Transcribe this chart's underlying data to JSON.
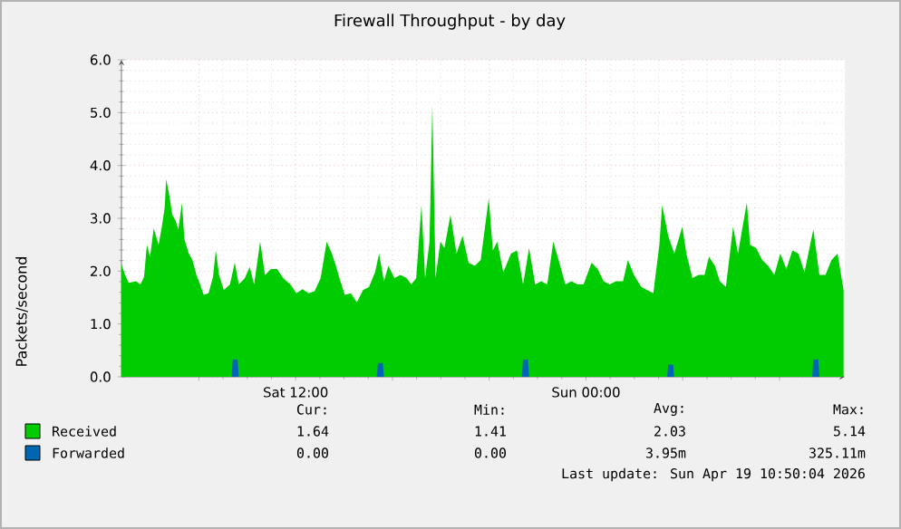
{
  "chart_data": {
    "type": "area",
    "title": "Firewall Throughput - by day",
    "ylabel": "Packets/second",
    "xlim": [
      "2026-04-18T04:48",
      "2026-04-19T10:42"
    ],
    "ylim": [
      0,
      6
    ],
    "xticks": [
      {
        "value": "2026-04-18T08:00",
        "label": null
      },
      {
        "value": "2026-04-18T12:00",
        "label": "Sat 12:00"
      },
      {
        "value": "2026-04-18T16:00",
        "label": null
      },
      {
        "value": "2026-04-18T20:00",
        "label": null
      },
      {
        "value": "2026-04-19T00:00",
        "label": "Sun 00:00"
      },
      {
        "value": "2026-04-19T04:00",
        "label": null
      },
      {
        "value": "2026-04-19T08:00",
        "label": null
      }
    ],
    "yticks": [
      {
        "value": 0,
        "label": "0.0"
      },
      {
        "value": 1,
        "label": "1.0"
      },
      {
        "value": 2,
        "label": "2.0"
      },
      {
        "value": 3,
        "label": "3.0"
      },
      {
        "value": 4,
        "label": "4.0"
      },
      {
        "value": 5,
        "label": "5.0"
      },
      {
        "value": 6,
        "label": "6.0"
      }
    ],
    "grid": true,
    "legend": "bottom left",
    "series": [
      {
        "name": "Received",
        "color": "#00cc00",
        "x": [
          "2026-04-18T04:48",
          "2026-04-18T04:57",
          "2026-04-18T05:06",
          "2026-04-18T05:24",
          "2026-04-18T05:35",
          "2026-04-18T05:44",
          "2026-04-18T05:51",
          "2026-04-18T05:59",
          "2026-04-18T06:08",
          "2026-04-18T06:20",
          "2026-04-18T06:27",
          "2026-04-18T06:35",
          "2026-04-18T06:39",
          "2026-04-18T06:47",
          "2026-04-18T06:54",
          "2026-04-18T07:02",
          "2026-04-18T07:09",
          "2026-04-18T07:18",
          "2026-04-18T07:24",
          "2026-04-18T07:35",
          "2026-04-18T07:44",
          "2026-04-18T07:54",
          "2026-04-18T08:03",
          "2026-04-18T08:12",
          "2026-04-18T08:24",
          "2026-04-18T08:35",
          "2026-04-18T08:42",
          "2026-04-18T08:50",
          "2026-04-18T09:02",
          "2026-04-18T09:17",
          "2026-04-18T09:29",
          "2026-04-18T09:39",
          "2026-04-18T09:54",
          "2026-04-18T10:06",
          "2026-04-18T10:17",
          "2026-04-18T10:32",
          "2026-04-18T10:44",
          "2026-04-18T10:59",
          "2026-04-18T11:14",
          "2026-04-18T11:29",
          "2026-04-18T11:47",
          "2026-04-18T12:02",
          "2026-04-18T12:17",
          "2026-04-18T12:32",
          "2026-04-18T12:47",
          "2026-04-18T13:02",
          "2026-04-18T13:17",
          "2026-04-18T13:29",
          "2026-04-18T13:39",
          "2026-04-18T13:51",
          "2026-04-18T14:02",
          "2026-04-18T14:17",
          "2026-04-18T14:32",
          "2026-04-18T14:47",
          "2026-04-18T15:02",
          "2026-04-18T15:17",
          "2026-04-18T15:27",
          "2026-04-18T15:39",
          "2026-04-18T15:50",
          "2026-04-18T16:05",
          "2026-04-18T16:20",
          "2026-04-18T16:35",
          "2026-04-18T16:47",
          "2026-04-18T16:59",
          "2026-04-18T17:12",
          "2026-04-18T17:21",
          "2026-04-18T17:32",
          "2026-04-18T17:39",
          "2026-04-18T17:47",
          "2026-04-18T17:59",
          "2026-04-18T18:09",
          "2026-04-18T18:24",
          "2026-04-18T18:39",
          "2026-04-18T18:54",
          "2026-04-18T19:09",
          "2026-04-18T19:24",
          "2026-04-18T19:39",
          "2026-04-18T19:59",
          "2026-04-18T20:09",
          "2026-04-18T20:20",
          "2026-04-18T20:35",
          "2026-04-18T20:54",
          "2026-04-18T21:09",
          "2026-04-18T21:24",
          "2026-04-18T21:39",
          "2026-04-18T21:54",
          "2026-04-18T22:09",
          "2026-04-18T22:24",
          "2026-04-18T22:39",
          "2026-04-18T22:54",
          "2026-04-18T23:09",
          "2026-04-18T23:24",
          "2026-04-18T23:39",
          "2026-04-18T23:54",
          "2026-04-19T00:14",
          "2026-04-19T00:29",
          "2026-04-19T00:44",
          "2026-04-19T00:59",
          "2026-04-19T01:14",
          "2026-04-19T01:32",
          "2026-04-19T01:44",
          "2026-04-19T01:59",
          "2026-04-19T02:17",
          "2026-04-19T02:32",
          "2026-04-19T02:47",
          "2026-04-19T03:02",
          "2026-04-19T03:09",
          "2026-04-19T03:24",
          "2026-04-19T03:39",
          "2026-04-19T03:59",
          "2026-04-19T04:09",
          "2026-04-19T04:24",
          "2026-04-19T04:39",
          "2026-04-19T04:54",
          "2026-04-19T05:05",
          "2026-04-19T05:20",
          "2026-04-19T05:32",
          "2026-04-19T05:47",
          "2026-04-19T06:05",
          "2026-04-19T06:17",
          "2026-04-19T06:39",
          "2026-04-19T06:47",
          "2026-04-19T07:02",
          "2026-04-19T07:17",
          "2026-04-19T07:32",
          "2026-04-19T07:47",
          "2026-04-19T08:02",
          "2026-04-19T08:17",
          "2026-04-19T08:32",
          "2026-04-19T08:47",
          "2026-04-19T09:02",
          "2026-04-19T09:24",
          "2026-04-19T09:39",
          "2026-04-19T09:54",
          "2026-04-19T10:09",
          "2026-04-19T10:24",
          "2026-04-19T10:39"
        ],
        "values": [
          2.12,
          1.93,
          1.78,
          1.81,
          1.75,
          1.89,
          2.5,
          2.27,
          2.81,
          2.5,
          2.79,
          3.19,
          3.74,
          3.42,
          3.07,
          2.96,
          2.79,
          3.29,
          2.61,
          2.33,
          2.21,
          1.93,
          1.75,
          1.55,
          1.58,
          1.89,
          2.39,
          1.93,
          1.64,
          1.75,
          2.16,
          1.75,
          1.87,
          2.08,
          1.75,
          2.56,
          1.93,
          2.04,
          2.04,
          1.87,
          1.75,
          1.58,
          1.66,
          1.58,
          1.62,
          1.87,
          2.56,
          2.35,
          2.12,
          1.81,
          1.55,
          1.58,
          1.41,
          1.64,
          1.7,
          1.98,
          2.33,
          1.81,
          2.1,
          1.87,
          1.93,
          1.87,
          1.75,
          1.87,
          3.25,
          1.87,
          2.56,
          5.14,
          1.87,
          2.56,
          2.44,
          3.07,
          2.33,
          2.67,
          2.16,
          2.1,
          2.21,
          3.38,
          2.39,
          2.56,
          1.98,
          2.33,
          2.39,
          1.75,
          2.44,
          1.75,
          1.81,
          1.75,
          2.56,
          2.16,
          1.75,
          1.81,
          1.75,
          1.75,
          2.16,
          2.04,
          1.81,
          1.75,
          1.81,
          1.81,
          2.21,
          1.93,
          1.7,
          1.64,
          1.58,
          2.5,
          3.25,
          2.67,
          2.33,
          2.84,
          2.33,
          1.87,
          1.93,
          1.93,
          2.27,
          2.1,
          1.81,
          1.7,
          2.84,
          2.33,
          3.3,
          2.5,
          2.44,
          2.21,
          2.1,
          1.93,
          2.33,
          2.04,
          2.39,
          2.33,
          1.98,
          2.79,
          1.93,
          1.93,
          2.21,
          2.33,
          1.64
        ]
      },
      {
        "name": "Forwarded",
        "color": "#0066b3",
        "x": [
          "2026-04-18T04:48",
          "2026-04-18T09:21",
          "2026-04-18T09:24",
          "2026-04-18T09:36",
          "2026-04-18T09:39",
          "2026-04-18T15:21",
          "2026-04-18T15:24",
          "2026-04-18T15:36",
          "2026-04-18T15:39",
          "2026-04-18T21:21",
          "2026-04-18T21:24",
          "2026-04-18T21:36",
          "2026-04-18T21:39",
          "2026-04-19T03:21",
          "2026-04-19T03:24",
          "2026-04-19T03:36",
          "2026-04-19T03:39",
          "2026-04-19T09:21",
          "2026-04-19T09:24",
          "2026-04-19T09:36",
          "2026-04-19T09:39",
          "2026-04-19T10:39"
        ],
        "values": [
          0,
          0,
          0.33,
          0.33,
          0,
          0,
          0.26,
          0.26,
          0,
          0,
          0.33,
          0.33,
          0,
          0,
          0.23,
          0.23,
          0,
          0,
          0.33,
          0.33,
          0,
          0
        ]
      }
    ],
    "annotations": [
      "Cur:",
      "Min:",
      "Avg:",
      "Max:",
      "1.64",
      "1.41",
      "2.03",
      "5.14",
      "0.00",
      "0.00",
      "3.95m",
      "325.11m",
      "Last update: Sun Apr 19 10:50:04 2026"
    ]
  }
}
